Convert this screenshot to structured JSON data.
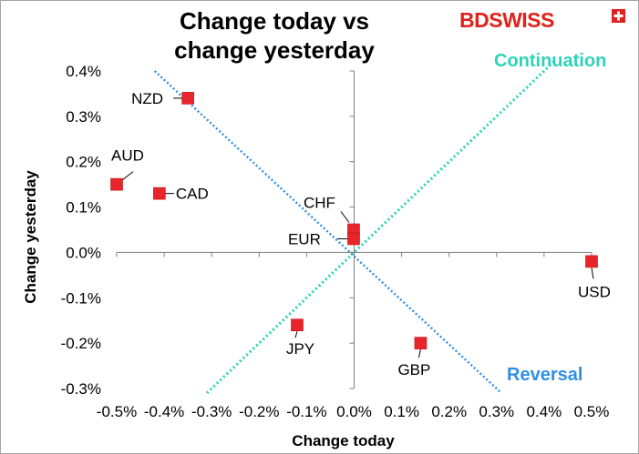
{
  "title_line1": "Change today vs",
  "title_line2": "change yesterday",
  "logo": {
    "bd": "BD",
    "swiss": "SWISS",
    "cross_icon": "swiss-cross-icon",
    "color": "#e2211c"
  },
  "regions": {
    "continuation": {
      "label": "Continuation",
      "color": "#2ed3b6"
    },
    "reversal": {
      "label": "Reversal",
      "color": "#2f8fe4"
    }
  },
  "chart_data": {
    "type": "scatter",
    "xlabel": "Change today",
    "ylabel": "Change yesterday",
    "xlim": [
      -0.005,
      0.005
    ],
    "ylim": [
      -0.003,
      0.004
    ],
    "x_ticks": [
      "-0.5%",
      "-0.4%",
      "-0.3%",
      "-0.2%",
      "-0.1%",
      "0.0%",
      "0.1%",
      "0.2%",
      "0.3%",
      "0.4%",
      "0.5%"
    ],
    "y_ticks": [
      "0.4%",
      "0.3%",
      "0.2%",
      "0.1%",
      "0.0%",
      "-0.1%",
      "-0.2%",
      "-0.3%"
    ],
    "marker_color": "#e8252a",
    "points": [
      {
        "label": "NZD",
        "x": -0.0035,
        "y": 0.0034
      },
      {
        "label": "AUD",
        "x": -0.005,
        "y": 0.0015
      },
      {
        "label": "CAD",
        "x": -0.0041,
        "y": 0.0013
      },
      {
        "label": "CHF",
        "x": -1e-05,
        "y": 0.0005
      },
      {
        "label": "EUR",
        "x": -1e-05,
        "y": 0.0003
      },
      {
        "label": "USD",
        "x": 0.005,
        "y": -0.0002
      },
      {
        "label": "JPY",
        "x": -0.0012,
        "y": -0.0016
      },
      {
        "label": "GBP",
        "x": 0.0014,
        "y": -0.002
      }
    ],
    "reference_lines": [
      {
        "name": "Continuation",
        "slope": 1,
        "color": "#2ed3b6"
      },
      {
        "name": "Reversal",
        "slope": -1,
        "color": "#2f8fe4"
      }
    ]
  }
}
